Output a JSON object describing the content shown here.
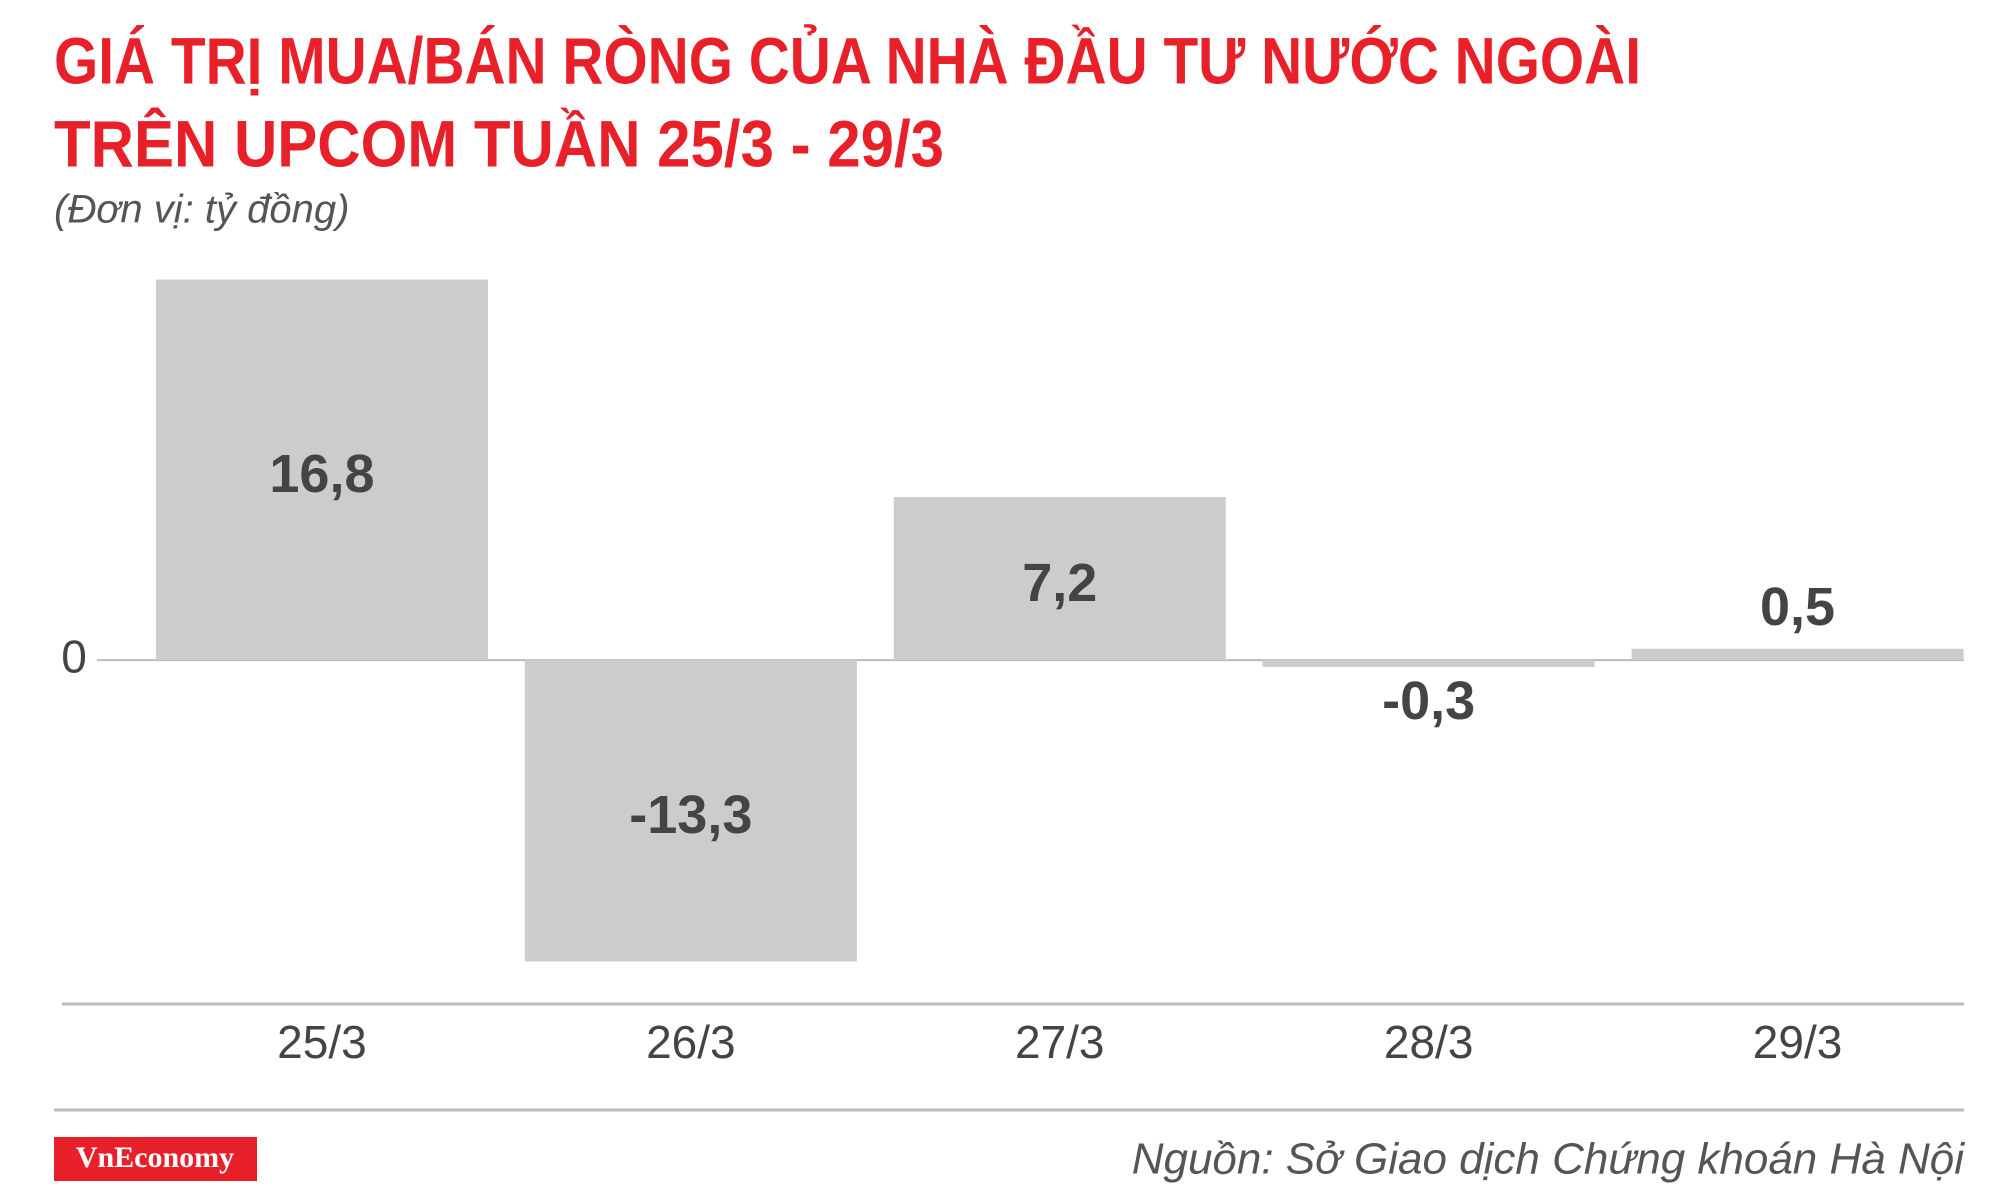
{
  "chart_data": {
    "type": "bar",
    "title": [
      "GIÁ TRỊ MUA/BÁN RÒNG CỦA NHÀ ĐẦU TƯ NƯỚC NGOÀI",
      "TRÊN UPCOM TUẦN 25/3 - 29/3"
    ],
    "subtitle": "(Đơn vị: tỷ đồng)",
    "categories": [
      "25/3",
      "26/3",
      "27/3",
      "28/3",
      "29/3"
    ],
    "values": [
      16.8,
      -13.3,
      7.2,
      -0.3,
      0.5
    ],
    "value_labels": [
      "16,8",
      "-13,3",
      "7,2",
      "-0,3",
      "0,5"
    ],
    "color": "#cdcccc",
    "ylim": [
      -15,
      17
    ],
    "yticks": [
      0
    ],
    "source": "Nguồn: Sở Giao dịch Chứng khoán Hà Nội",
    "logo": "VnEconomy"
  }
}
